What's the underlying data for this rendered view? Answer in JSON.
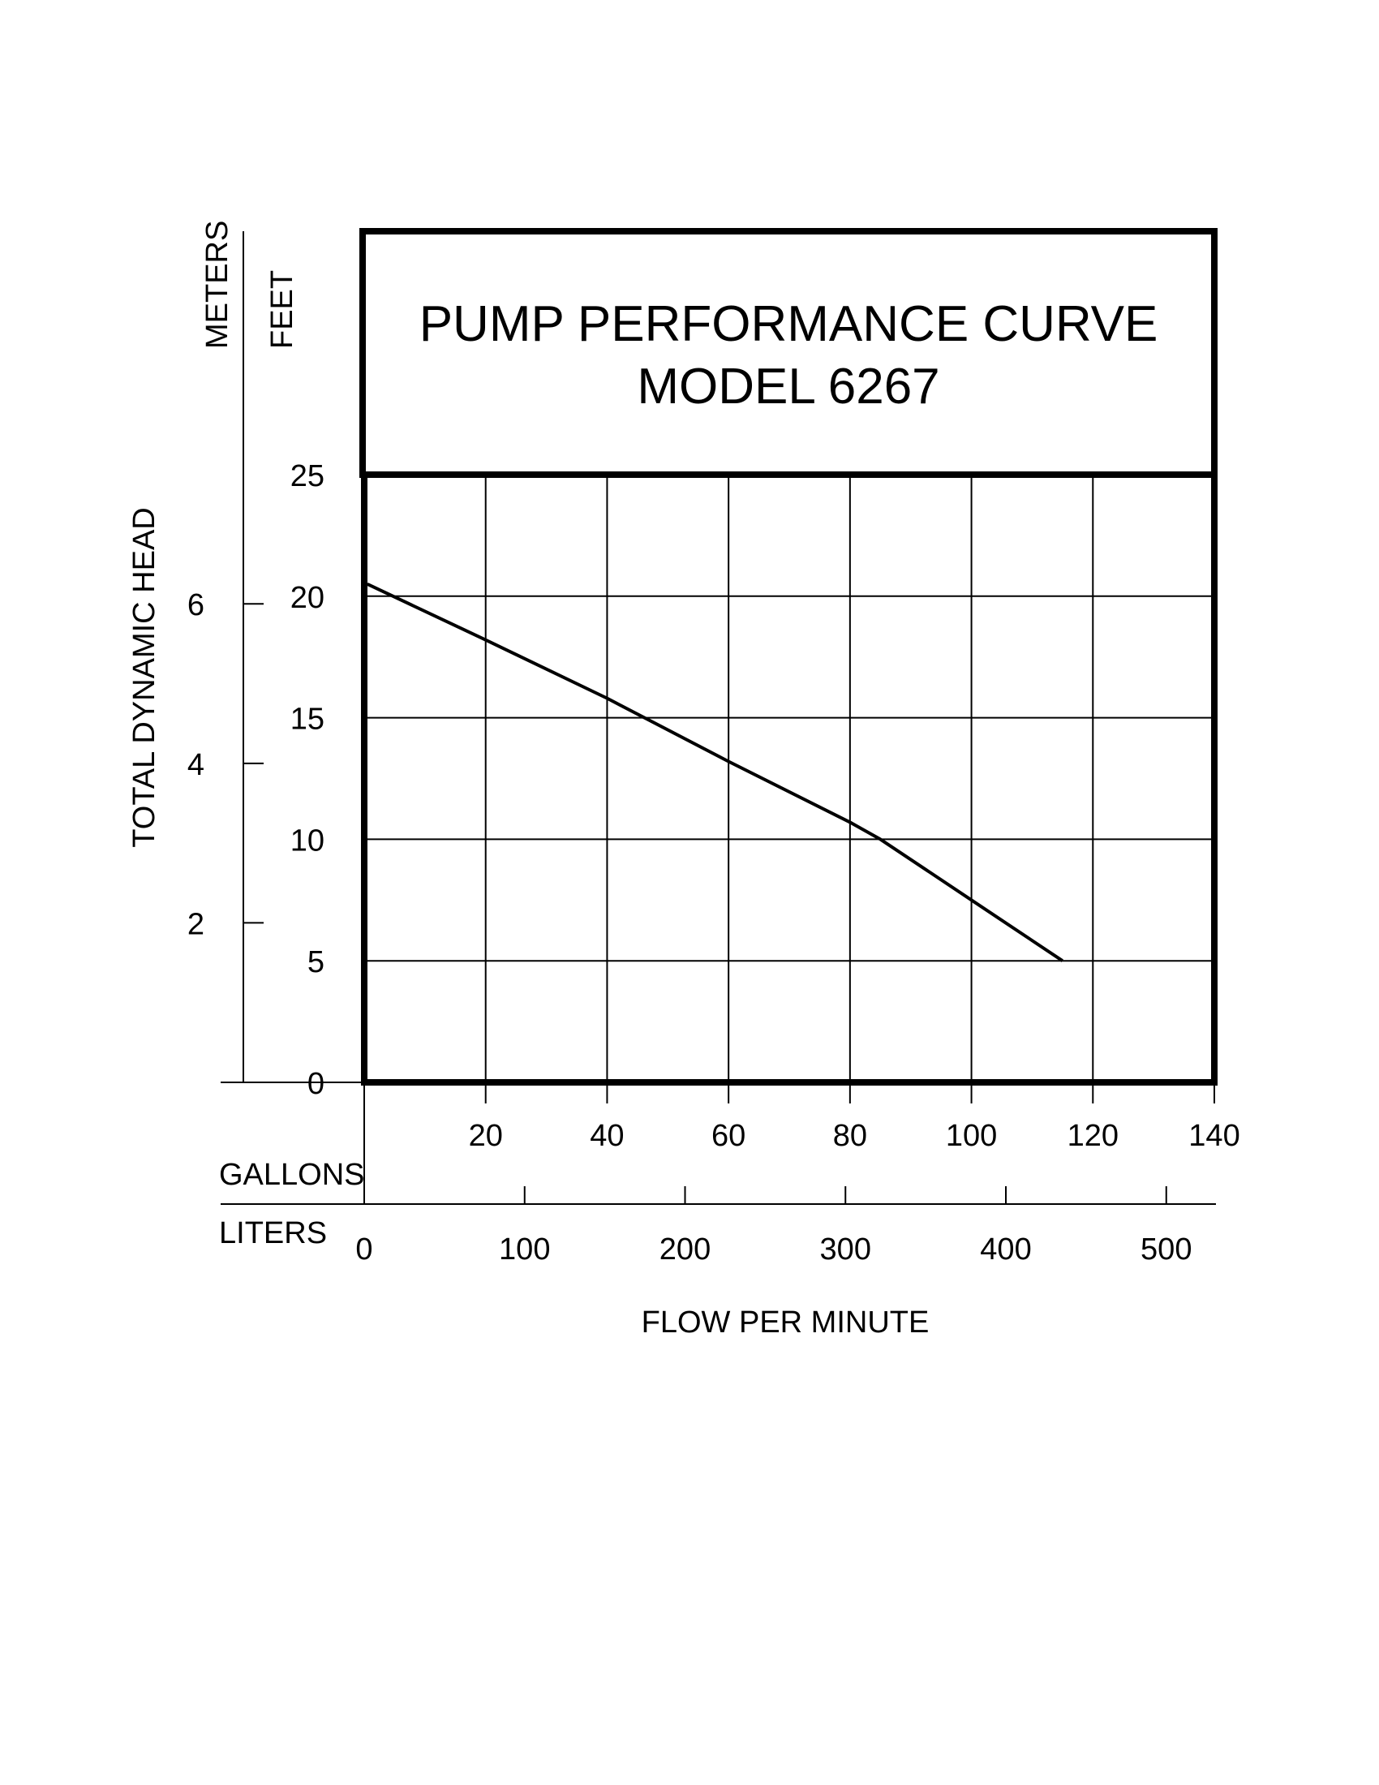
{
  "chart_data": {
    "type": "line",
    "title": "PUMP PERFORMANCE CURVE",
    "subtitle": "MODEL 6267",
    "ylabel": "TOTAL DYNAMIC HEAD",
    "xlabel": "FLOW PER MINUTE",
    "y_unit_primary": "FEET",
    "y_unit_secondary": "METERS",
    "x_unit_primary": "GALLONS",
    "x_unit_secondary": "LITERS",
    "xlim": [
      0,
      140
    ],
    "ylim": [
      0,
      25
    ],
    "x_ticks": [
      "20",
      "40",
      "60",
      "80",
      "100",
      "120",
      "140"
    ],
    "x_ticks_secondary": [
      "0",
      "100",
      "200",
      "300",
      "400",
      "500"
    ],
    "y_ticks": [
      "0",
      "5",
      "10",
      "15",
      "20",
      "25"
    ],
    "y_ticks_secondary": [
      "2",
      "4",
      "6"
    ],
    "grid": true,
    "series": [
      {
        "x": [
          0.5,
          20,
          40,
          60,
          80,
          85,
          100,
          115
        ],
        "y": [
          20.5,
          18.2,
          15.8,
          13.2,
          10.7,
          10.0,
          7.5,
          5.0
        ]
      }
    ]
  }
}
